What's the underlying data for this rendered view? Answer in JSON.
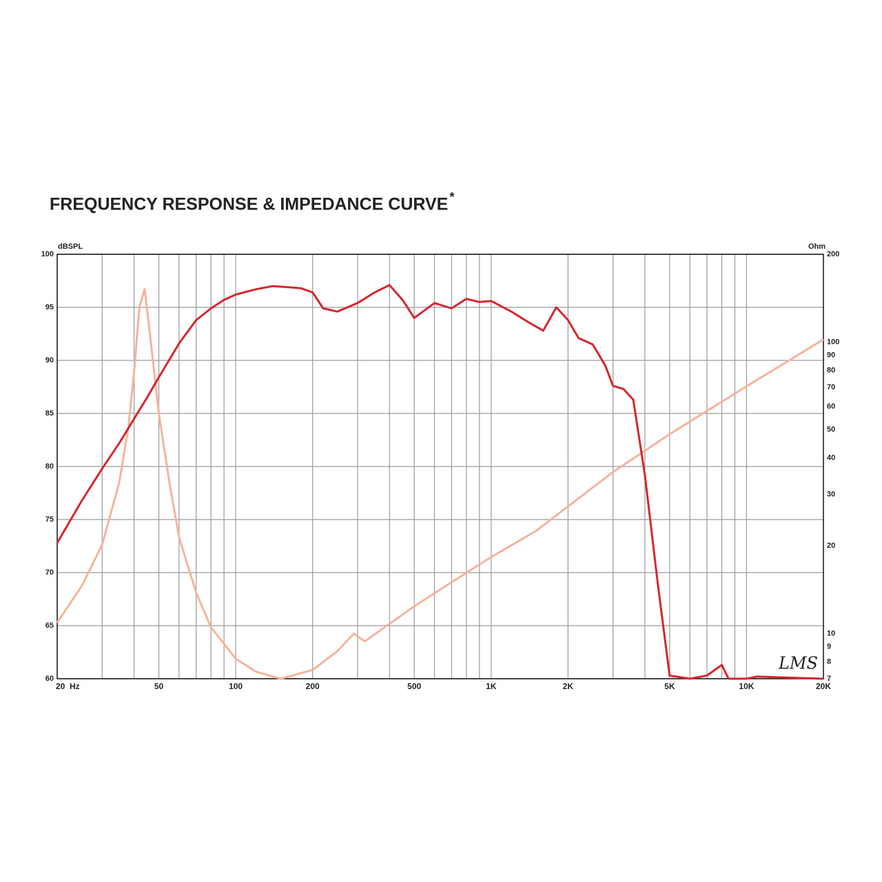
{
  "chart_data": {
    "type": "line",
    "title": "FREQUENCY RESPONSE & IMPEDANCE CURVE",
    "title_mark": "*",
    "ylabel": "dBSPL",
    "y2label": "Ohm",
    "annotations": [
      "LMS"
    ],
    "xscale": "log",
    "y2scale": "log",
    "grid": true,
    "xlim": [
      20,
      20000
    ],
    "xticks": [
      {
        "value": 20,
        "label": "20  Hz"
      },
      50,
      100,
      200,
      500,
      {
        "value": 1000,
        "label": "1K"
      },
      {
        "value": 2000,
        "label": "2K"
      },
      {
        "value": 5000,
        "label": "5K"
      },
      {
        "value": 10000,
        "label": "10K"
      },
      {
        "value": 20000,
        "label": "20K"
      }
    ],
    "xgrid": [
      30,
      40,
      50,
      60,
      70,
      80,
      90,
      100,
      200,
      300,
      400,
      500,
      600,
      700,
      800,
      900,
      1000,
      2000,
      3000,
      4000,
      5000,
      6000,
      7000,
      8000,
      9000,
      10000
    ],
    "ylim": [
      60,
      100
    ],
    "yticks": [
      60,
      65,
      70,
      75,
      80,
      85,
      90,
      95,
      100
    ],
    "y2lim": [
      7,
      200
    ],
    "y2ticks": [
      7,
      8,
      9,
      10,
      20,
      30,
      40,
      50,
      60,
      70,
      80,
      90,
      100,
      200
    ],
    "series": [
      {
        "color": "#d7262e",
        "x": [
          20,
          25,
          30,
          35,
          40,
          45,
          50,
          60,
          70,
          80,
          90,
          100,
          120,
          140,
          160,
          180,
          200,
          220,
          250,
          300,
          350,
          400,
          450,
          500,
          600,
          700,
          800,
          900,
          1000,
          1200,
          1400,
          1600,
          1800,
          2000,
          2200,
          2500,
          2800,
          3000,
          3300,
          3600,
          4000,
          4500,
          5000,
          6000,
          7000,
          8000,
          8500,
          10000,
          11000,
          20000
        ],
        "values": [
          72.8,
          76.8,
          79.8,
          82.2,
          84.5,
          86.5,
          88.4,
          91.6,
          93.8,
          94.9,
          95.7,
          96.2,
          96.7,
          97.0,
          96.9,
          96.8,
          96.4,
          94.9,
          94.6,
          95.4,
          96.4,
          97.1,
          95.7,
          94.0,
          95.4,
          94.9,
          95.8,
          95.5,
          95.6,
          94.6,
          93.6,
          92.8,
          95.0,
          93.8,
          92.1,
          91.5,
          89.5,
          87.6,
          87.3,
          86.3,
          79.2,
          68.8,
          60.3,
          60,
          60.3,
          61.3,
          60,
          60,
          60.2,
          60
        ]
      },
      {
        "color": "#f5b49b",
        "axis": "y2",
        "x": [
          20,
          25,
          30,
          35,
          38,
          40,
          42,
          44,
          46,
          50,
          55,
          60,
          70,
          80,
          100,
          120,
          150,
          200,
          250,
          290,
          320,
          400,
          500,
          700,
          1000,
          1500,
          2000,
          3000,
          5000,
          10000,
          20000
        ],
        "values": [
          10.9,
          14.6,
          20.2,
          33,
          51,
          79,
          132,
          152,
          109,
          57,
          33,
          21.4,
          13.8,
          10.5,
          8.2,
          7.4,
          7,
          7.5,
          8.7,
          10.0,
          9.4,
          10.8,
          12.4,
          15,
          18.3,
          22.5,
          27.3,
          35.8,
          48.3,
          70.5,
          102
        ]
      }
    ]
  }
}
